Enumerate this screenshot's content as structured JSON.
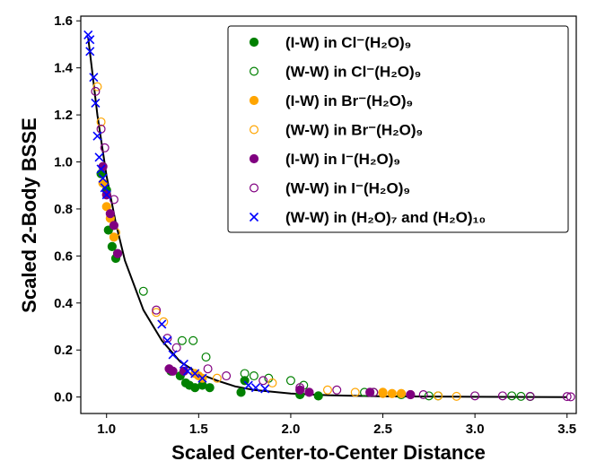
{
  "chart_data": {
    "type": "scatter",
    "title": "",
    "xlabel": "Scaled Center-to-Center Distance",
    "ylabel": "Scaled 2-Body BSSE",
    "xlim": [
      0.86,
      3.55
    ],
    "ylim": [
      -0.07,
      1.62
    ],
    "xticks": [
      1.0,
      1.5,
      2.0,
      2.5,
      3.0,
      3.5
    ],
    "yticks": [
      0.0,
      0.2,
      0.4,
      0.6,
      0.8,
      1.0,
      1.2,
      1.4,
      1.6
    ],
    "xtick_labels": [
      "1.0",
      "1.5",
      "2.0",
      "2.5",
      "3.0",
      "3.5"
    ],
    "ytick_labels": [
      "0.0",
      "0.2",
      "0.4",
      "0.6",
      "0.8",
      "1.0",
      "1.2",
      "1.4",
      "1.6"
    ],
    "grid": false,
    "legend_position": "top-right",
    "fit_curve": {
      "type": "line",
      "color": "#000000",
      "x": [
        0.9,
        0.95,
        1.0,
        1.05,
        1.1,
        1.2,
        1.3,
        1.4,
        1.5,
        1.6,
        1.7,
        1.8,
        2.0,
        2.2,
        2.5,
        3.0,
        3.5
      ],
      "y": [
        1.53,
        1.2,
        0.94,
        0.74,
        0.58,
        0.37,
        0.24,
        0.15,
        0.1,
        0.07,
        0.045,
        0.03,
        0.015,
        0.008,
        0.003,
        0.001,
        0.0
      ]
    },
    "series": [
      {
        "name": "(I-W) in Cl⁻(H₂O)₉",
        "color": "#008000",
        "marker": "filled-circle",
        "x": [
          0.97,
          1.0,
          1.01,
          1.03,
          1.05,
          1.06,
          1.35,
          1.4,
          1.43,
          1.45,
          1.48,
          1.52,
          1.56,
          1.73,
          1.75,
          2.05,
          2.15
        ],
        "y": [
          0.95,
          0.88,
          0.71,
          0.64,
          0.59,
          0.61,
          0.11,
          0.09,
          0.06,
          0.05,
          0.04,
          0.05,
          0.04,
          0.02,
          0.07,
          0.01,
          0.005
        ]
      },
      {
        "name": "(W-W) in Cl⁻(H₂O)₉",
        "color": "#008000",
        "marker": "open-circle",
        "x": [
          1.2,
          1.41,
          1.47,
          1.54,
          1.75,
          1.8,
          1.88,
          2.0,
          2.07,
          2.4,
          2.45,
          2.6,
          2.75,
          2.8,
          3.2,
          3.25,
          3.3
        ],
        "y": [
          0.45,
          0.24,
          0.24,
          0.17,
          0.1,
          0.09,
          0.08,
          0.07,
          0.05,
          0.02,
          0.02,
          0.01,
          0.005,
          0.005,
          0.005,
          0.003,
          0.002
        ]
      },
      {
        "name": "(I-W) in Br⁻(H₂O)₉",
        "color": "#ffa500",
        "marker": "filled-circle",
        "x": [
          0.98,
          1.0,
          1.02,
          1.04,
          1.48,
          1.5,
          1.52,
          2.5,
          2.55,
          2.6
        ],
        "y": [
          0.91,
          0.81,
          0.76,
          0.68,
          0.1,
          0.09,
          0.08,
          0.02,
          0.015,
          0.015
        ]
      },
      {
        "name": "(W-W) in Br⁻(H₂O)₉",
        "color": "#ffa500",
        "marker": "open-circle",
        "x": [
          0.95,
          0.97,
          1.05,
          1.27,
          1.31,
          1.6,
          1.9,
          2.2,
          2.35,
          2.5,
          2.65,
          2.8,
          2.9
        ],
        "y": [
          1.32,
          1.17,
          0.7,
          0.36,
          0.32,
          0.08,
          0.06,
          0.03,
          0.02,
          0.015,
          0.01,
          0.005,
          0.003
        ]
      },
      {
        "name": "(I-W) in I⁻(H₂O)₉",
        "color": "#800080",
        "marker": "filled-circle",
        "x": [
          0.98,
          1.0,
          1.02,
          1.04,
          1.06,
          1.34,
          1.36,
          1.42,
          2.05,
          2.1,
          2.43,
          2.65
        ],
        "y": [
          0.98,
          0.86,
          0.78,
          0.73,
          0.61,
          0.12,
          0.11,
          0.11,
          0.03,
          0.02,
          0.02,
          0.01
        ]
      },
      {
        "name": "(W-W) in I⁻(H₂O)₉",
        "color": "#800080",
        "marker": "open-circle",
        "x": [
          0.94,
          0.97,
          0.99,
          1.04,
          1.27,
          1.33,
          1.38,
          1.55,
          1.65,
          1.85,
          2.05,
          2.25,
          2.45,
          2.65,
          2.72,
          3.0,
          3.15,
          3.3,
          3.5,
          3.52
        ],
        "y": [
          1.3,
          1.14,
          1.06,
          0.84,
          0.37,
          0.25,
          0.21,
          0.12,
          0.09,
          0.07,
          0.04,
          0.03,
          0.02,
          0.01,
          0.01,
          0.005,
          0.005,
          0.003,
          0.002,
          0.001
        ]
      },
      {
        "name": "(W-W) in (H₂O)₇ and (H₂O)₁₀",
        "color": "#0000ff",
        "marker": "x",
        "x": [
          0.9,
          0.91,
          0.91,
          0.93,
          0.94,
          0.95,
          0.96,
          0.97,
          0.98,
          0.99,
          1.0,
          1.3,
          1.33,
          1.36,
          1.42,
          1.44,
          1.48,
          1.52,
          1.77,
          1.81,
          1.86
        ],
        "y": [
          1.54,
          1.52,
          1.47,
          1.36,
          1.25,
          1.11,
          1.02,
          0.97,
          0.93,
          0.89,
          0.86,
          0.31,
          0.24,
          0.18,
          0.14,
          0.11,
          0.1,
          0.08,
          0.05,
          0.04,
          0.035
        ]
      }
    ]
  }
}
